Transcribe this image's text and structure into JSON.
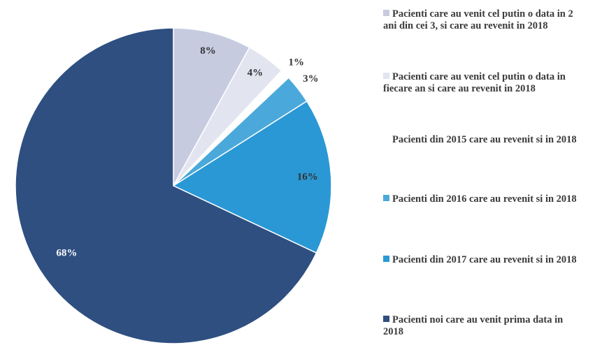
{
  "chart_data": {
    "type": "pie",
    "categories": [
      "Pacienti care au venit cel putin o data in 2 ani din cei 3, si care au revenit in 2018",
      "Pacienti care au venit cel putin o data in fiecare an si care au revenit in 2018",
      "Pacienti din 2015 care au revenit si in 2018",
      "Pacienti din 2016 care au revenit si in 2018",
      "Pacienti din 2017 care au revenit si in 2018",
      "Pacienti noi care au venit prima data in 2018"
    ],
    "values": [
      8,
      4,
      1,
      3,
      16,
      68
    ],
    "value_labels": [
      "8%",
      "4%",
      "1%",
      "3%",
      "16%",
      "68%"
    ],
    "colors": [
      "#c6cbe0",
      "#e2e5f0",
      "#ffffff",
      "#4aa9da",
      "#2a98d5",
      "#2e4f80"
    ]
  }
}
